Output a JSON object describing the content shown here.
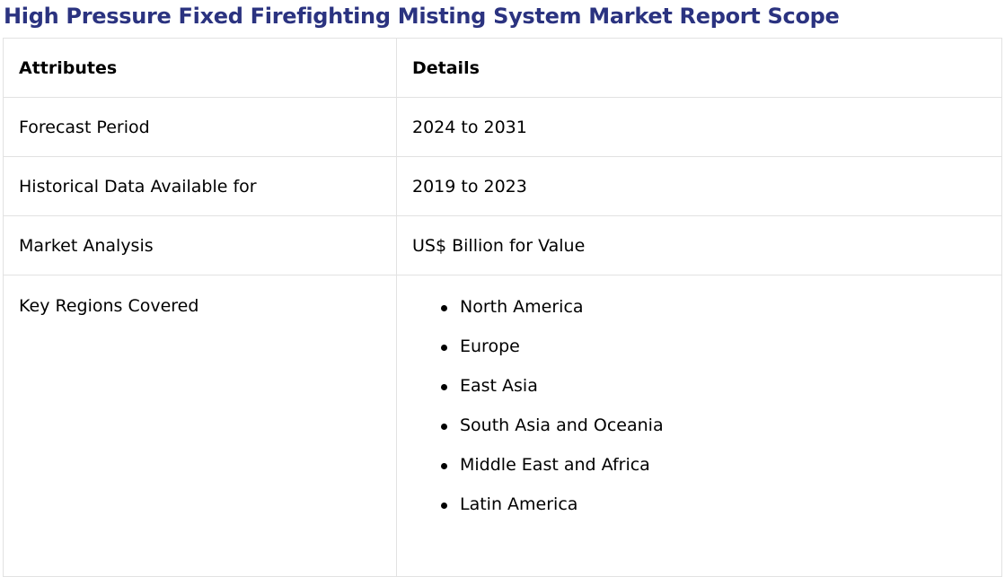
{
  "title": "High Pressure Fixed Firefighting Misting System Market Report Scope",
  "table": {
    "headers": {
      "attributes": "Attributes",
      "details": "Details"
    },
    "rows": [
      {
        "attribute": "Forecast Period",
        "detail": "2024 to 2031"
      },
      {
        "attribute": "Historical Data Available for",
        "detail": "2019 to 2023"
      },
      {
        "attribute": "Market Analysis",
        "detail": "US$ Billion for Value"
      }
    ],
    "regions": {
      "attribute": "Key Regions Covered",
      "items": [
        "North America",
        "Europe",
        "East Asia",
        "South Asia and Oceania",
        "Middle East and Africa",
        "Latin America"
      ]
    }
  },
  "colors": {
    "title": "#2b3380",
    "border": "#e2e2e2"
  }
}
